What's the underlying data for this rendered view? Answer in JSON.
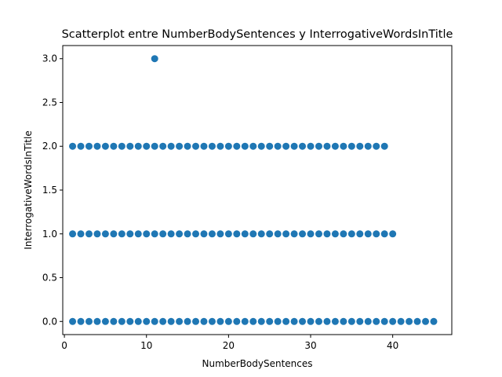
{
  "chart_data": {
    "type": "scatter",
    "title": "Scatterplot entre NumberBodySentences y InterrogativeWordsInTitle",
    "xlabel": "NumberBodySentences",
    "ylabel": "InterrogativeWordsInTitle",
    "xlim": [
      -0.2,
      47.2
    ],
    "ylim": [
      -0.15,
      3.15
    ],
    "xticks": [
      0,
      10,
      20,
      30,
      40
    ],
    "xtick_labels": [
      "0",
      "10",
      "20",
      "30",
      "40"
    ],
    "yticks": [
      0.0,
      0.5,
      1.0,
      1.5,
      2.0,
      2.5,
      3.0
    ],
    "ytick_labels": [
      "0.0",
      "0.5",
      "1.0",
      "1.5",
      "2.0",
      "2.5",
      "3.0"
    ],
    "grid": false,
    "legend": "none",
    "marker_color": "#1f77b4",
    "series": [
      {
        "points": [
          [
            1,
            0
          ],
          [
            2,
            0
          ],
          [
            3,
            0
          ],
          [
            4,
            0
          ],
          [
            5,
            0
          ],
          [
            6,
            0
          ],
          [
            7,
            0
          ],
          [
            8,
            0
          ],
          [
            9,
            0
          ],
          [
            10,
            0
          ],
          [
            11,
            0
          ],
          [
            12,
            0
          ],
          [
            13,
            0
          ],
          [
            14,
            0
          ],
          [
            15,
            0
          ],
          [
            16,
            0
          ],
          [
            17,
            0
          ],
          [
            18,
            0
          ],
          [
            19,
            0
          ],
          [
            20,
            0
          ],
          [
            21,
            0
          ],
          [
            22,
            0
          ],
          [
            23,
            0
          ],
          [
            24,
            0
          ],
          [
            25,
            0
          ],
          [
            26,
            0
          ],
          [
            27,
            0
          ],
          [
            28,
            0
          ],
          [
            29,
            0
          ],
          [
            30,
            0
          ],
          [
            31,
            0
          ],
          [
            32,
            0
          ],
          [
            33,
            0
          ],
          [
            34,
            0
          ],
          [
            35,
            0
          ],
          [
            36,
            0
          ],
          [
            37,
            0
          ],
          [
            38,
            0
          ],
          [
            39,
            0
          ],
          [
            40,
            0
          ],
          [
            41,
            0
          ],
          [
            42,
            0
          ],
          [
            43,
            0
          ],
          [
            44,
            0
          ],
          [
            45,
            0
          ],
          [
            1,
            1
          ],
          [
            2,
            1
          ],
          [
            3,
            1
          ],
          [
            4,
            1
          ],
          [
            5,
            1
          ],
          [
            6,
            1
          ],
          [
            7,
            1
          ],
          [
            8,
            1
          ],
          [
            9,
            1
          ],
          [
            10,
            1
          ],
          [
            11,
            1
          ],
          [
            12,
            1
          ],
          [
            13,
            1
          ],
          [
            14,
            1
          ],
          [
            15,
            1
          ],
          [
            16,
            1
          ],
          [
            17,
            1
          ],
          [
            18,
            1
          ],
          [
            19,
            1
          ],
          [
            20,
            1
          ],
          [
            21,
            1
          ],
          [
            22,
            1
          ],
          [
            23,
            1
          ],
          [
            24,
            1
          ],
          [
            25,
            1
          ],
          [
            26,
            1
          ],
          [
            27,
            1
          ],
          [
            28,
            1
          ],
          [
            29,
            1
          ],
          [
            30,
            1
          ],
          [
            31,
            1
          ],
          [
            32,
            1
          ],
          [
            33,
            1
          ],
          [
            34,
            1
          ],
          [
            35,
            1
          ],
          [
            36,
            1
          ],
          [
            37,
            1
          ],
          [
            38,
            1
          ],
          [
            39,
            1
          ],
          [
            40,
            1
          ],
          [
            1,
            2
          ],
          [
            2,
            2
          ],
          [
            3,
            2
          ],
          [
            4,
            2
          ],
          [
            5,
            2
          ],
          [
            6,
            2
          ],
          [
            7,
            2
          ],
          [
            8,
            2
          ],
          [
            9,
            2
          ],
          [
            10,
            2
          ],
          [
            11,
            2
          ],
          [
            12,
            2
          ],
          [
            13,
            2
          ],
          [
            14,
            2
          ],
          [
            15,
            2
          ],
          [
            16,
            2
          ],
          [
            17,
            2
          ],
          [
            18,
            2
          ],
          [
            19,
            2
          ],
          [
            20,
            2
          ],
          [
            21,
            2
          ],
          [
            22,
            2
          ],
          [
            23,
            2
          ],
          [
            24,
            2
          ],
          [
            25,
            2
          ],
          [
            26,
            2
          ],
          [
            27,
            2
          ],
          [
            28,
            2
          ],
          [
            29,
            2
          ],
          [
            30,
            2
          ],
          [
            31,
            2
          ],
          [
            32,
            2
          ],
          [
            33,
            2
          ],
          [
            34,
            2
          ],
          [
            35,
            2
          ],
          [
            36,
            2
          ],
          [
            37,
            2
          ],
          [
            38,
            2
          ],
          [
            39,
            2
          ],
          [
            11,
            3
          ]
        ]
      }
    ]
  }
}
